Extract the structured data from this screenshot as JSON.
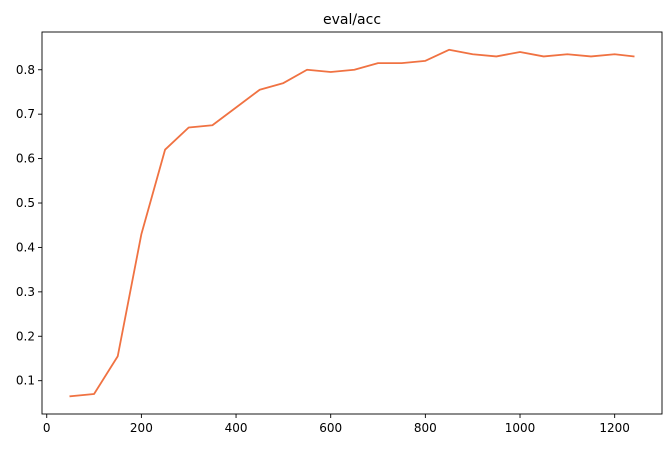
{
  "chart_data": {
    "type": "line",
    "title": "eval/acc",
    "xlabel": "",
    "ylabel": "",
    "xlim": [
      -10,
      1300
    ],
    "ylim": [
      0.025,
      0.885
    ],
    "x_ticks": [
      0,
      200,
      400,
      600,
      800,
      1000,
      1200
    ],
    "y_ticks": [
      0.1,
      0.2,
      0.3,
      0.4,
      0.5,
      0.6,
      0.7,
      0.8
    ],
    "grid": false,
    "legend": "none",
    "series": [
      {
        "name": "eval/acc",
        "color": "#f07242",
        "x": [
          50,
          100,
          150,
          200,
          250,
          300,
          350,
          400,
          450,
          500,
          550,
          600,
          650,
          700,
          750,
          800,
          850,
          900,
          950,
          1000,
          1050,
          1100,
          1150,
          1200,
          1240
        ],
        "y": [
          0.065,
          0.07,
          0.155,
          0.43,
          0.62,
          0.67,
          0.675,
          0.715,
          0.755,
          0.77,
          0.8,
          0.795,
          0.8,
          0.815,
          0.815,
          0.82,
          0.845,
          0.835,
          0.83,
          0.84,
          0.83,
          0.835,
          0.83,
          0.835,
          0.83
        ]
      }
    ]
  },
  "colors": {
    "background": "#ffffff",
    "axes": "#000000",
    "line": "#f07242"
  }
}
